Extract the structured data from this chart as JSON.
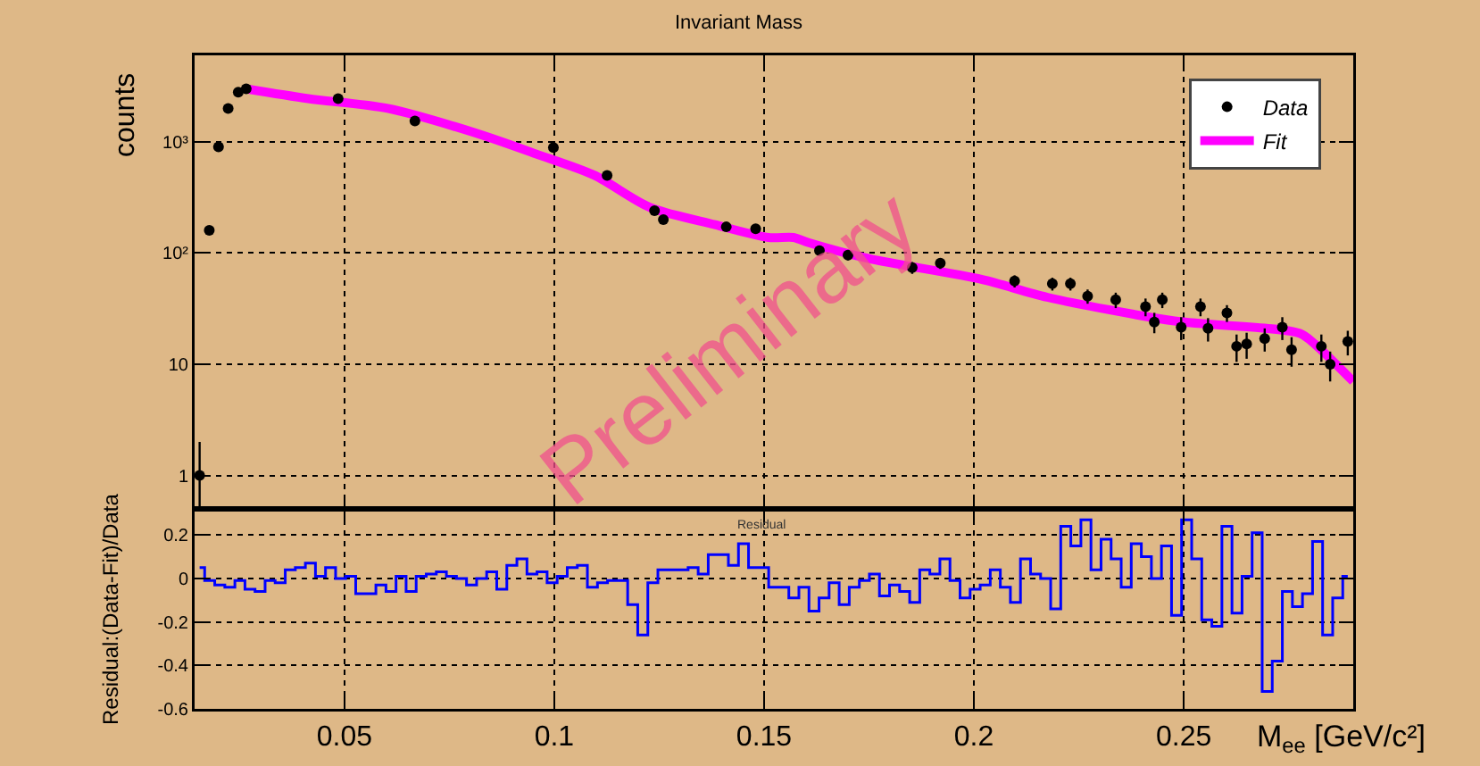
{
  "chart_data": [
    {
      "type": "scatter",
      "title": "Invariant Mass",
      "ylabel": "counts",
      "annotations": [
        "Preliminary"
      ],
      "xlim": [
        0.0143,
        0.2904
      ],
      "xticks": [
        0.05,
        0.1,
        0.15,
        0.2,
        0.25
      ],
      "ylim": [
        0.5,
        6000
      ],
      "yticks": [
        1,
        10,
        {
          "value": 100,
          "label": "10²"
        },
        {
          "value": 1000,
          "label": "10³"
        }
      ],
      "log": true,
      "grid": true,
      "legend": "top right",
      "tick_labels": "y",
      "series": [
        {
          "name": "Data",
          "marker": "circle",
          "color": "#000000",
          "x": [
            0.0155,
            0.0178,
            0.02,
            0.0223,
            0.0247,
            0.0266,
            0.0485,
            0.0668,
            0.0998,
            0.1126,
            0.1239,
            0.126,
            0.141,
            0.148,
            0.1632,
            0.17,
            0.1853,
            0.192,
            0.2097,
            0.2187,
            0.223,
            0.2271,
            0.2338,
            0.2409,
            0.243,
            0.2449,
            0.2494,
            0.254,
            0.2558,
            0.2603,
            0.2626,
            0.265,
            0.2693,
            0.2735,
            0.2757,
            0.2828,
            0.2849,
            0.2891
          ],
          "values": [
            1,
            160,
            900,
            2000,
            2800,
            3000,
            2450,
            1540,
            890,
            500,
            240,
            200,
            172,
            165,
            105,
            96,
            74,
            81,
            56,
            53,
            53,
            41,
            38,
            33,
            24,
            38,
            21.5,
            33,
            21,
            29,
            14.5,
            15.2,
            17,
            21.5,
            13.5,
            14.5,
            10,
            16
          ],
          "errors": [
            [
              0.5,
              2
            ],
            null,
            null,
            null,
            null,
            null,
            null,
            null,
            null,
            null,
            null,
            null,
            null,
            null,
            10,
            10,
            9,
            9,
            7,
            7,
            7,
            6,
            6,
            6,
            5,
            6,
            5,
            6,
            5,
            5,
            4,
            4,
            4,
            5,
            4,
            4,
            3,
            4
          ]
        },
        {
          "name": "Fit",
          "type": "line",
          "color": "#ff00ff",
          "x": [
            0.0266,
            0.0414,
            0.0603,
            0.0813,
            0.0956,
            0.1096,
            0.1226,
            0.1383,
            0.151,
            0.157,
            0.1606,
            0.175,
            0.2018,
            0.2175,
            0.2478,
            0.2776,
            0.2814,
            0.2904
          ],
          "values": [
            3000,
            2450,
            2000,
            1200,
            780,
            500,
            260,
            180,
            138,
            138,
            124,
            89,
            58,
            40,
            24.5,
            19,
            15,
            7
          ]
        }
      ]
    },
    {
      "type": "step",
      "title": "Residual",
      "xlabel": "M$_{ee}$ [GeV/c²]",
      "ylabel": "Residual:(Data-Fit)/Data",
      "xlim": [
        0.0143,
        0.2904
      ],
      "xticks": [
        0.05,
        0.1,
        0.15,
        0.2,
        0.25
      ],
      "ylim": [
        -0.6,
        0.32
      ],
      "yticks": [
        -0.6,
        -0.4,
        -0.2,
        0,
        0.2
      ],
      "grid": true,
      "series": [
        {
          "color": "#0000ff",
          "x": [
            0.0155,
            0.0179,
            0.0203,
            0.0227,
            0.0251,
            0.0275,
            0.0299,
            0.0323,
            0.0347,
            0.0371,
            0.0395,
            0.0419,
            0.0443,
            0.0467,
            0.0491,
            0.0515,
            0.0539,
            0.0563,
            0.0587,
            0.0611,
            0.0635,
            0.0659,
            0.0683,
            0.0707,
            0.0731,
            0.0755,
            0.0779,
            0.0803,
            0.0827,
            0.0851,
            0.0875,
            0.0899,
            0.0923,
            0.0947,
            0.0971,
            0.0995,
            0.1019,
            0.1043,
            0.1067,
            0.1091,
            0.1115,
            0.1139,
            0.1163,
            0.1187,
            0.1211,
            0.1235,
            0.1259,
            0.1283,
            0.1307,
            0.1331,
            0.1355,
            0.1379,
            0.1403,
            0.1427,
            0.1451,
            0.1475,
            0.1499,
            0.1523,
            0.1547,
            0.1571,
            0.1595,
            0.1619,
            0.1643,
            0.1667,
            0.1691,
            0.1715,
            0.1739,
            0.1763,
            0.1787,
            0.1811,
            0.1835,
            0.1859,
            0.1883,
            0.1907,
            0.1931,
            0.1955,
            0.1979,
            0.2003,
            0.2027,
            0.2051,
            0.2075,
            0.2099,
            0.2123,
            0.2147,
            0.2171,
            0.2195,
            0.2219,
            0.2243,
            0.2267,
            0.2291,
            0.2315,
            0.2339,
            0.2363,
            0.2387,
            0.2411,
            0.2435,
            0.2459,
            0.2483,
            0.2507,
            0.2531,
            0.2555,
            0.2579,
            0.2603,
            0.2627,
            0.2651,
            0.2675,
            0.2699,
            0.2723,
            0.2747,
            0.2771,
            0.2795,
            0.2819,
            0.2843,
            0.2867,
            0.2891
          ],
          "values": [
            0.05,
            -0.01,
            -0.03,
            -0.04,
            -0.01,
            -0.05,
            -0.06,
            -0.01,
            -0.02,
            0.04,
            0.05,
            0.07,
            0.01,
            0.05,
            0,
            0.01,
            -0.07,
            -0.07,
            -0.03,
            -0.06,
            0.01,
            -0.06,
            0.01,
            0.02,
            0.03,
            0.01,
            0,
            -0.03,
            0,
            0.03,
            -0.05,
            0.06,
            0.09,
            0.02,
            0.03,
            -0.02,
            0.01,
            0.05,
            0.06,
            -0.04,
            -0.02,
            -0.01,
            -0.01,
            -0.12,
            -0.26,
            -0.02,
            0.04,
            0.04,
            0.04,
            0.05,
            0.02,
            0.11,
            0.11,
            0.06,
            0.16,
            0.05,
            0.05,
            -0.04,
            -0.04,
            -0.09,
            -0.04,
            -0.15,
            -0.09,
            -0.02,
            -0.12,
            -0.04,
            -0.01,
            0.02,
            -0.08,
            -0.03,
            -0.06,
            -0.11,
            0.04,
            0.02,
            0.09,
            -0.01,
            -0.09,
            -0.05,
            -0.03,
            0.04,
            -0.04,
            -0.11,
            0.09,
            0.02,
            0,
            -0.14,
            0.24,
            0.15,
            0.27,
            0.04,
            0.18,
            0.09,
            -0.04,
            0.16,
            0.1,
            0,
            0.15,
            -0.17,
            0.27,
            0.09,
            -0.19,
            -0.22,
            0.24,
            -0.16,
            0.01,
            0.21,
            -0.52,
            -0.38,
            -0.06,
            -0.13,
            -0.07,
            0.17,
            -0.26,
            -0.09,
            0.01
          ]
        }
      ]
    }
  ]
}
